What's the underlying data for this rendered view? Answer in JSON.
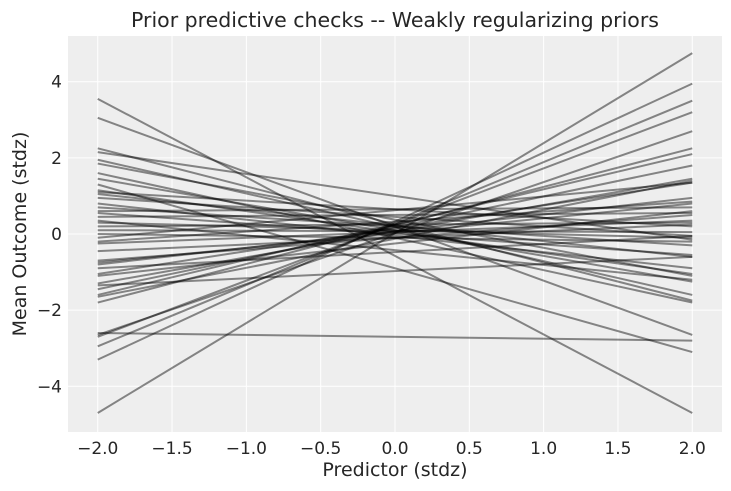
{
  "chart_data": {
    "type": "line",
    "title": "Prior predictive checks -- Weakly regularizing priors",
    "xlabel": "Predictor (stdz)",
    "ylabel": "Mean Outcome (stdz)",
    "xlim": [
      -2.2,
      2.2
    ],
    "ylim": [
      -5.2,
      5.2
    ],
    "xticks": [
      -2.0,
      -1.5,
      -1.0,
      -0.5,
      0.0,
      0.5,
      1.0,
      1.5,
      2.0
    ],
    "xtick_labels": [
      "−2.0",
      "−1.5",
      "−1.0",
      "−0.5",
      "0.0",
      "0.5",
      "1.0",
      "1.5",
      "2.0"
    ],
    "yticks": [
      -4,
      -2,
      0,
      2,
      4
    ],
    "ytick_labels": [
      "−4",
      "−2",
      "0",
      "2",
      "4"
    ],
    "grid": true,
    "background": "#eeeeee",
    "grid_color": "#ffffff",
    "line_color": "#000000",
    "line_alpha": 0.45,
    "x": [
      -2.0,
      2.0
    ],
    "series": [
      {
        "values": [
          -4.7,
          4.75
        ]
      },
      {
        "values": [
          -3.3,
          3.95
        ]
      },
      {
        "values": [
          -2.95,
          3.5
        ]
      },
      {
        "values": [
          -2.7,
          3.2
        ]
      },
      {
        "values": [
          -2.65,
          2.7
        ]
      },
      {
        "values": [
          -1.8,
          2.25
        ]
      },
      {
        "values": [
          -1.6,
          2.1
        ]
      },
      {
        "values": [
          -1.45,
          1.8
        ]
      },
      {
        "values": [
          -1.3,
          1.45
        ]
      },
      {
        "values": [
          -1.05,
          1.35
        ]
      },
      {
        "values": [
          -0.8,
          0.95
        ]
      },
      {
        "values": [
          -0.75,
          0.8
        ]
      },
      {
        "values": [
          -0.7,
          0.5
        ]
      },
      {
        "values": [
          -0.25,
          0.35
        ]
      },
      {
        "values": [
          -0.2,
          0.85
        ]
      },
      {
        "values": [
          0.1,
          0.05
        ]
      },
      {
        "values": [
          0.3,
          -0.1
        ]
      },
      {
        "values": [
          0.45,
          0.55
        ]
      },
      {
        "values": [
          0.55,
          -0.55
        ]
      },
      {
        "values": [
          0.7,
          -0.3
        ]
      },
      {
        "values": [
          0.95,
          -0.05
        ]
      },
      {
        "values": [
          1.05,
          -0.6
        ]
      },
      {
        "values": [
          1.15,
          -1.05
        ]
      },
      {
        "values": [
          1.45,
          -1.25
        ]
      },
      {
        "values": [
          1.85,
          -1.1
        ]
      },
      {
        "values": [
          1.95,
          -1.6
        ]
      },
      {
        "values": [
          2.15,
          -0.15
        ]
      },
      {
        "values": [
          2.25,
          -1.75
        ]
      },
      {
        "values": [
          3.05,
          -2.65
        ]
      },
      {
        "values": [
          3.55,
          -4.7
        ]
      },
      {
        "values": [
          -1.35,
          -0.6
        ]
      },
      {
        "values": [
          -1.65,
          1.4
        ]
      },
      {
        "values": [
          0.0,
          -0.2
        ]
      },
      {
        "values": [
          0.6,
          0.7
        ]
      },
      {
        "values": [
          1.1,
          0.2
        ]
      },
      {
        "values": [
          0.35,
          -1.2
        ]
      },
      {
        "values": [
          -0.9,
          -0.05
        ]
      },
      {
        "values": [
          -2.6,
          -2.8
        ]
      },
      {
        "values": [
          1.3,
          -3.1
        ]
      },
      {
        "values": [
          -0.1,
          1.35
        ]
      },
      {
        "values": [
          -1.1,
          0.6
        ]
      },
      {
        "values": [
          0.8,
          -0.9
        ]
      },
      {
        "values": [
          0.2,
          0.3
        ]
      },
      {
        "values": [
          -0.45,
          0.25
        ]
      },
      {
        "values": [
          1.6,
          -1.8
        ]
      }
    ]
  }
}
